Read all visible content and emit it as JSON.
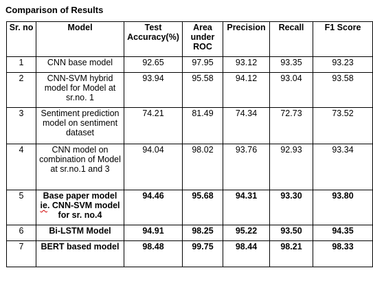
{
  "title": "Comparison of Results",
  "table": {
    "headers": {
      "sr": "Sr. no",
      "model": "Model",
      "acc": "Test Accuracy(%)",
      "auc": "Area under ROC",
      "prec": "Precision",
      "rec": "Recall",
      "f1": "F1 Score"
    },
    "rows": [
      {
        "sr": "1",
        "model": "CNN base model",
        "acc": "92.65",
        "auc": "97.95",
        "prec": "93.12",
        "rec": "93.35",
        "f1": "93.23"
      },
      {
        "sr": "2",
        "model": "CNN-SVM hybrid model for Model at sr.no. 1",
        "acc": "93.94",
        "auc": "95.58",
        "prec": "94.12",
        "rec": "93.04",
        "f1": "93.58"
      },
      {
        "sr": "3",
        "model": "Sentiment prediction model on sentiment dataset",
        "acc": "74.21",
        "auc": "81.49",
        "prec": "74.34",
        "rec": "72.73",
        "f1": "73.52"
      },
      {
        "sr": "4",
        "model": "CNN model on combination of Model at sr.no.1 and 3",
        "acc": "94.04",
        "auc": "98.02",
        "prec": "93.76",
        "rec": "92.93",
        "f1": "93.34"
      },
      {
        "sr": "5",
        "model_pre": "Base paper model ",
        "model_squiggle": "ie",
        "model_post": ". CNN-SVM model for sr. no.4",
        "acc": "94.46",
        "auc": "95.68",
        "prec": "94.31",
        "rec": "93.30",
        "f1": "93.80"
      },
      {
        "sr": "6",
        "model": "Bi-LSTM Model",
        "acc": "94.91",
        "auc": "98.25",
        "prec": "95.22",
        "rec": "93.50",
        "f1": "94.35"
      },
      {
        "sr": "7",
        "model": "BERT based model",
        "acc": "98.48",
        "auc": "99.75",
        "prec": "98.44",
        "rec": "98.21",
        "f1": "98.33"
      }
    ]
  }
}
